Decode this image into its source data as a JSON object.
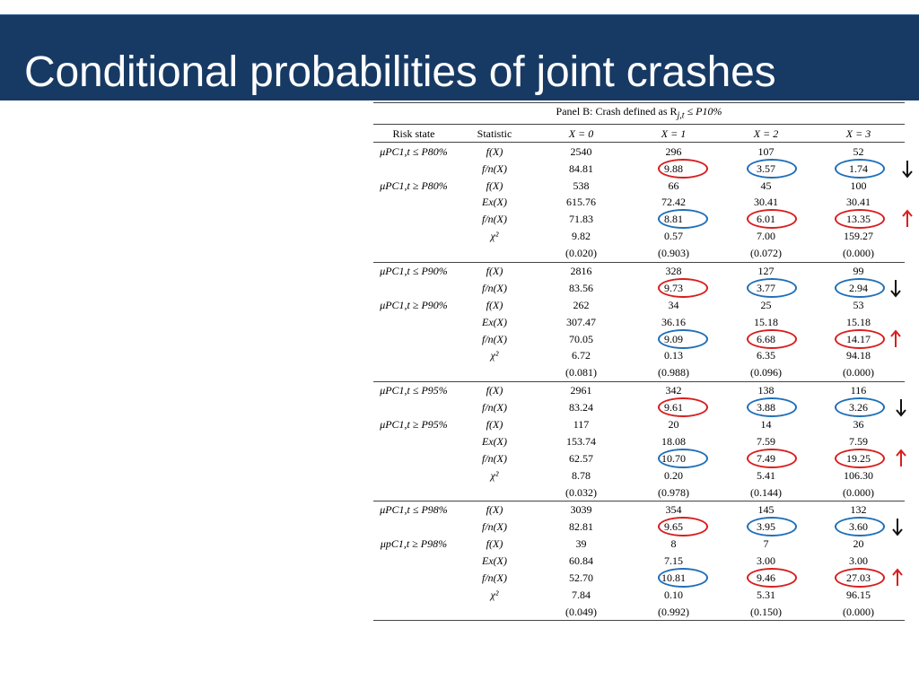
{
  "slide": {
    "title": "Conditional probabilities of joint crashes"
  },
  "table": {
    "panel_title": "Panel B: Crash defined as R",
    "panel_sub": "j,t",
    "panel_tail": " ≤ P10%",
    "headers": {
      "risk_state": "Risk state",
      "statistic": "Statistic",
      "x0": "X = 0",
      "x1": "X = 1",
      "x2": "X = 2",
      "x3": "X = 3"
    },
    "blocks": [
      {
        "rows": [
          {
            "risk": "μPC1,t ≤ P80%",
            "stat": "f(X)",
            "v0": "2540",
            "v1": "296",
            "v2": "107",
            "v3": "52"
          },
          {
            "risk": "",
            "stat": "f/n(X)",
            "v0": "84.81",
            "v1": "9.88",
            "v2": "3.57",
            "v3": "1.74"
          },
          {
            "risk": "μPC1,t ≥ P80%",
            "stat": "f(X)",
            "v0": "538",
            "v1": "66",
            "v2": "45",
            "v3": "100"
          },
          {
            "risk": "",
            "stat": "Ex(X)",
            "v0": "615.76",
            "v1": "72.42",
            "v2": "30.41",
            "v3": "30.41"
          },
          {
            "risk": "",
            "stat": "f/n(X)",
            "v0": "71.83",
            "v1": "8.81",
            "v2": "6.01",
            "v3": "13.35"
          },
          {
            "risk": "",
            "stat": "χ²",
            "v0": "9.82",
            "v1": "0.57",
            "v2": "7.00",
            "v3": "159.27"
          },
          {
            "risk": "",
            "stat": "",
            "v0": "(0.020)",
            "v1": "(0.903)",
            "v2": "(0.072)",
            "v3": "(0.000)"
          }
        ]
      },
      {
        "rows": [
          {
            "risk": "μPC1,t ≤ P90%",
            "stat": "f(X)",
            "v0": "2816",
            "v1": "328",
            "v2": "127",
            "v3": "99"
          },
          {
            "risk": "",
            "stat": "f/n(X)",
            "v0": "83.56",
            "v1": "9.73",
            "v2": "3.77",
            "v3": "2.94"
          },
          {
            "risk": "μPC1,t ≥ P90%",
            "stat": "f(X)",
            "v0": "262",
            "v1": "34",
            "v2": "25",
            "v3": "53"
          },
          {
            "risk": "",
            "stat": "Ex(X)",
            "v0": "307.47",
            "v1": "36.16",
            "v2": "15.18",
            "v3": "15.18"
          },
          {
            "risk": "",
            "stat": "f/n(X)",
            "v0": "70.05",
            "v1": "9.09",
            "v2": "6.68",
            "v3": "14.17"
          },
          {
            "risk": "",
            "stat": "χ²",
            "v0": "6.72",
            "v1": "0.13",
            "v2": "6.35",
            "v3": "94.18"
          },
          {
            "risk": "",
            "stat": "",
            "v0": "(0.081)",
            "v1": "(0.988)",
            "v2": "(0.096)",
            "v3": "(0.000)"
          }
        ]
      },
      {
        "rows": [
          {
            "risk": "μPC1,t ≤ P95%",
            "stat": "f(X)",
            "v0": "2961",
            "v1": "342",
            "v2": "138",
            "v3": "116"
          },
          {
            "risk": "",
            "stat": "f/n(X)",
            "v0": "83.24",
            "v1": "9.61",
            "v2": "3.88",
            "v3": "3.26"
          },
          {
            "risk": "μPC1,t ≥ P95%",
            "stat": "f(X)",
            "v0": "117",
            "v1": "20",
            "v2": "14",
            "v3": "36"
          },
          {
            "risk": "",
            "stat": "Ex(X)",
            "v0": "153.74",
            "v1": "18.08",
            "v2": "7.59",
            "v3": "7.59"
          },
          {
            "risk": "",
            "stat": "f/n(X)",
            "v0": "62.57",
            "v1": "10.70",
            "v2": "7.49",
            "v3": "19.25"
          },
          {
            "risk": "",
            "stat": "χ²",
            "v0": "8.78",
            "v1": "0.20",
            "v2": "5.41",
            "v3": "106.30"
          },
          {
            "risk": "",
            "stat": "",
            "v0": "(0.032)",
            "v1": "(0.978)",
            "v2": "(0.144)",
            "v3": "(0.000)"
          }
        ]
      },
      {
        "rows": [
          {
            "risk": "μPC1,t ≤ P98%",
            "stat": "f(X)",
            "v0": "3039",
            "v1": "354",
            "v2": "145",
            "v3": "132"
          },
          {
            "risk": "",
            "stat": "f/n(X)",
            "v0": "82.81",
            "v1": "9.65",
            "v2": "3.95",
            "v3": "3.60"
          },
          {
            "risk": "μpC1,t ≥ P98%",
            "stat": "f(X)",
            "v0": "39",
            "v1": "8",
            "v2": "7",
            "v3": "20"
          },
          {
            "risk": "",
            "stat": "Ex(X)",
            "v0": "60.84",
            "v1": "7.15",
            "v2": "3.00",
            "v3": "3.00"
          },
          {
            "risk": "",
            "stat": "f/n(X)",
            "v0": "52.70",
            "v1": "10.81",
            "v2": "9.46",
            "v3": "27.03"
          },
          {
            "risk": "",
            "stat": "χ²",
            "v0": "7.84",
            "v1": "0.10",
            "v2": "5.31",
            "v3": "96.15"
          },
          {
            "risk": "",
            "stat": "",
            "v0": "(0.049)",
            "v1": "(0.992)",
            "v2": "(0.150)",
            "v3": "(0.000)"
          }
        ]
      }
    ]
  },
  "annotations": {
    "colors": {
      "red": "#d81e1e",
      "blue": "#1f6fb8",
      "arrow_down": "#111111",
      "arrow_up": "#d81e1e"
    },
    "arrow_down_icon": "arrow-down-icon",
    "arrow_up_icon": "arrow-up-icon"
  }
}
